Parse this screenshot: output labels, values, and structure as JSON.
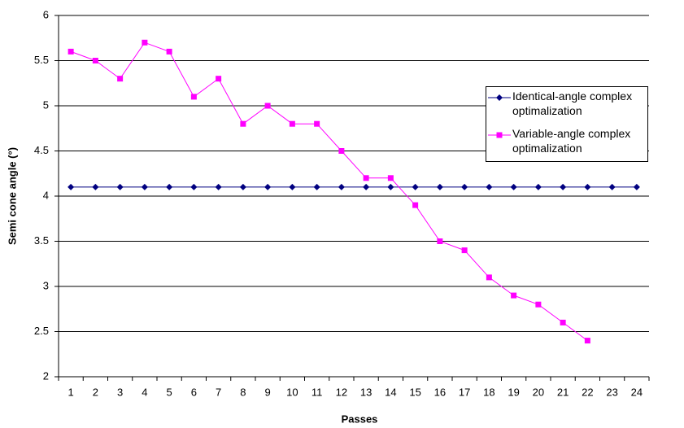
{
  "chart_data": {
    "type": "line",
    "x_label": "Passes",
    "y_label": "Semi cone angle (°)",
    "categories": [
      "1",
      "2",
      "3",
      "4",
      "5",
      "6",
      "7",
      "8",
      "9",
      "10",
      "11",
      "12",
      "13",
      "14",
      "15",
      "16",
      "17",
      "18",
      "19",
      "20",
      "21",
      "22",
      "23",
      "24"
    ],
    "series": [
      {
        "name": "Identical-angle complex optimalization",
        "color": "#000080",
        "marker": "diamond",
        "values": [
          4.1,
          4.1,
          4.1,
          4.1,
          4.1,
          4.1,
          4.1,
          4.1,
          4.1,
          4.1,
          4.1,
          4.1,
          4.1,
          4.1,
          4.1,
          4.1,
          4.1,
          4.1,
          4.1,
          4.1,
          4.1,
          4.1,
          4.1,
          4.1
        ]
      },
      {
        "name": "Variable-angle complex optimalization",
        "color": "#ff00ff",
        "marker": "square",
        "values": [
          5.6,
          5.5,
          5.3,
          5.7,
          5.6,
          5.1,
          5.3,
          4.8,
          5.0,
          4.8,
          4.8,
          4.5,
          4.2,
          4.2,
          3.9,
          3.5,
          3.4,
          3.1,
          2.9,
          2.8,
          2.6,
          2.4,
          null,
          null
        ]
      }
    ],
    "ylim": [
      2,
      6
    ],
    "yticks": [
      2,
      2.5,
      3,
      3.5,
      4,
      4.5,
      5,
      5.5,
      6
    ],
    "grid": true,
    "legend": "right"
  }
}
